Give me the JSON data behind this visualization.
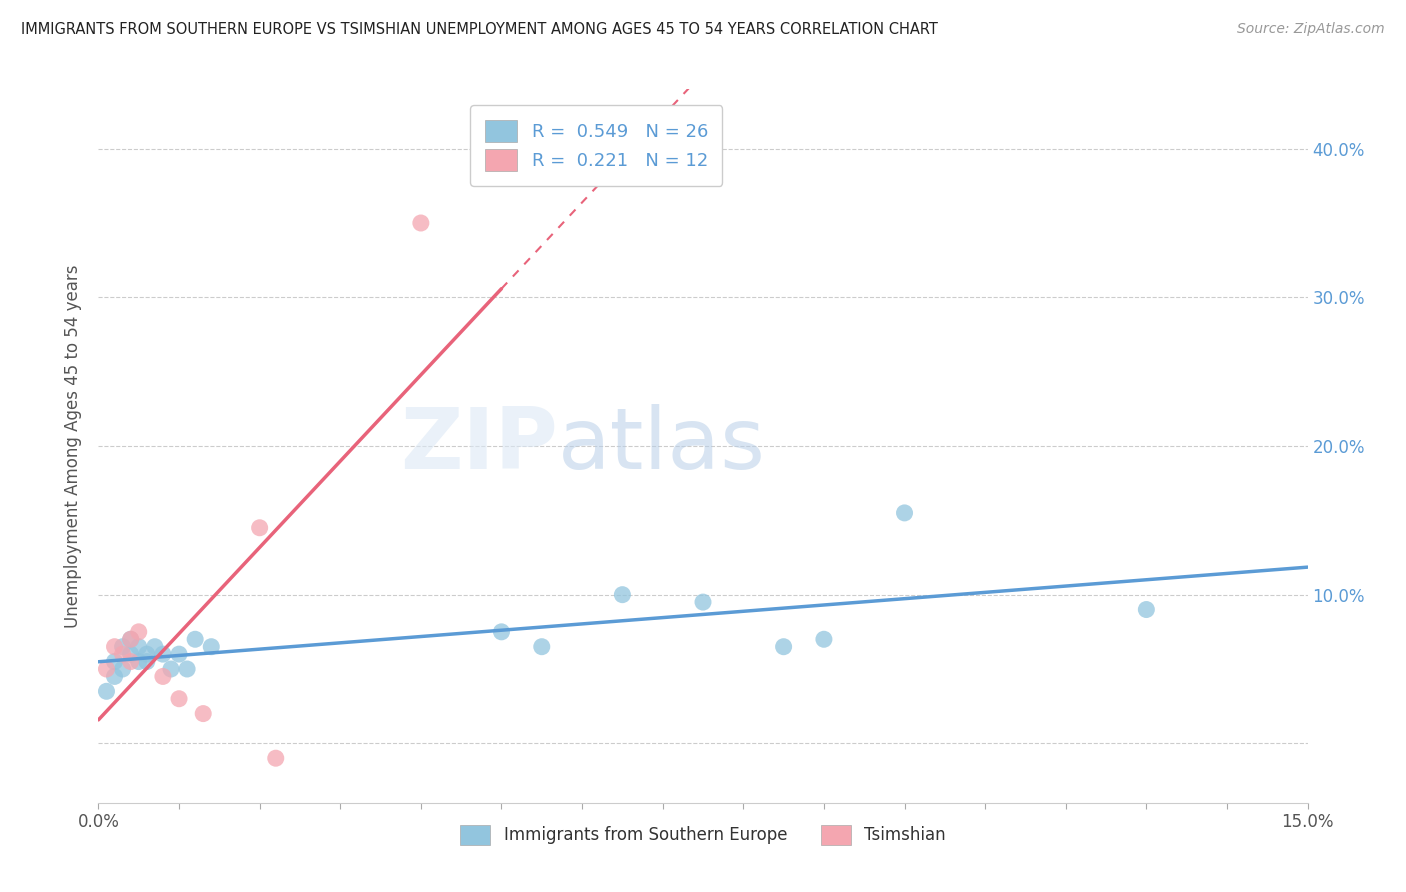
{
  "title": "IMMIGRANTS FROM SOUTHERN EUROPE VS TSIMSHIAN UNEMPLOYMENT AMONG AGES 45 TO 54 YEARS CORRELATION CHART",
  "source": "Source: ZipAtlas.com",
  "ylabel": "Unemployment Among Ages 45 to 54 years",
  "xlim": [
    0.0,
    0.15
  ],
  "ylim": [
    -0.04,
    0.44
  ],
  "blue_scatter_x": [
    0.001,
    0.002,
    0.002,
    0.003,
    0.003,
    0.004,
    0.004,
    0.005,
    0.005,
    0.006,
    0.006,
    0.007,
    0.008,
    0.009,
    0.01,
    0.011,
    0.012,
    0.014,
    0.05,
    0.055,
    0.065,
    0.075,
    0.085,
    0.09,
    0.1,
    0.13
  ],
  "blue_scatter_y": [
    0.035,
    0.045,
    0.055,
    0.05,
    0.065,
    0.06,
    0.07,
    0.055,
    0.065,
    0.055,
    0.06,
    0.065,
    0.06,
    0.05,
    0.06,
    0.05,
    0.07,
    0.065,
    0.075,
    0.065,
    0.1,
    0.095,
    0.065,
    0.07,
    0.155,
    0.09
  ],
  "pink_scatter_x": [
    0.001,
    0.002,
    0.003,
    0.004,
    0.004,
    0.005,
    0.008,
    0.01,
    0.013,
    0.02,
    0.022,
    0.04
  ],
  "pink_scatter_y": [
    0.05,
    0.065,
    0.06,
    0.07,
    0.055,
    0.075,
    0.045,
    0.03,
    0.02,
    0.145,
    -0.01,
    0.35
  ],
  "blue_R": "0.549",
  "blue_N": "26",
  "pink_R": "0.221",
  "pink_N": "12",
  "blue_scatter_color": "#92C5DE",
  "pink_scatter_color": "#F4A6B0",
  "blue_line_color": "#5B9BD5",
  "pink_line_color": "#E8637A",
  "watermark_zip": "ZIP",
  "watermark_atlas": "atlas",
  "background_color": "#ffffff",
  "grid_color": "#cccccc",
  "ytick_positions": [
    0.0,
    0.1,
    0.2,
    0.3,
    0.4
  ],
  "ytick_labels": [
    "",
    "10.0%",
    "20.0%",
    "30.0%",
    "40.0%"
  ],
  "xtick_left_label": "0.0%",
  "xtick_right_label": "15.0%"
}
